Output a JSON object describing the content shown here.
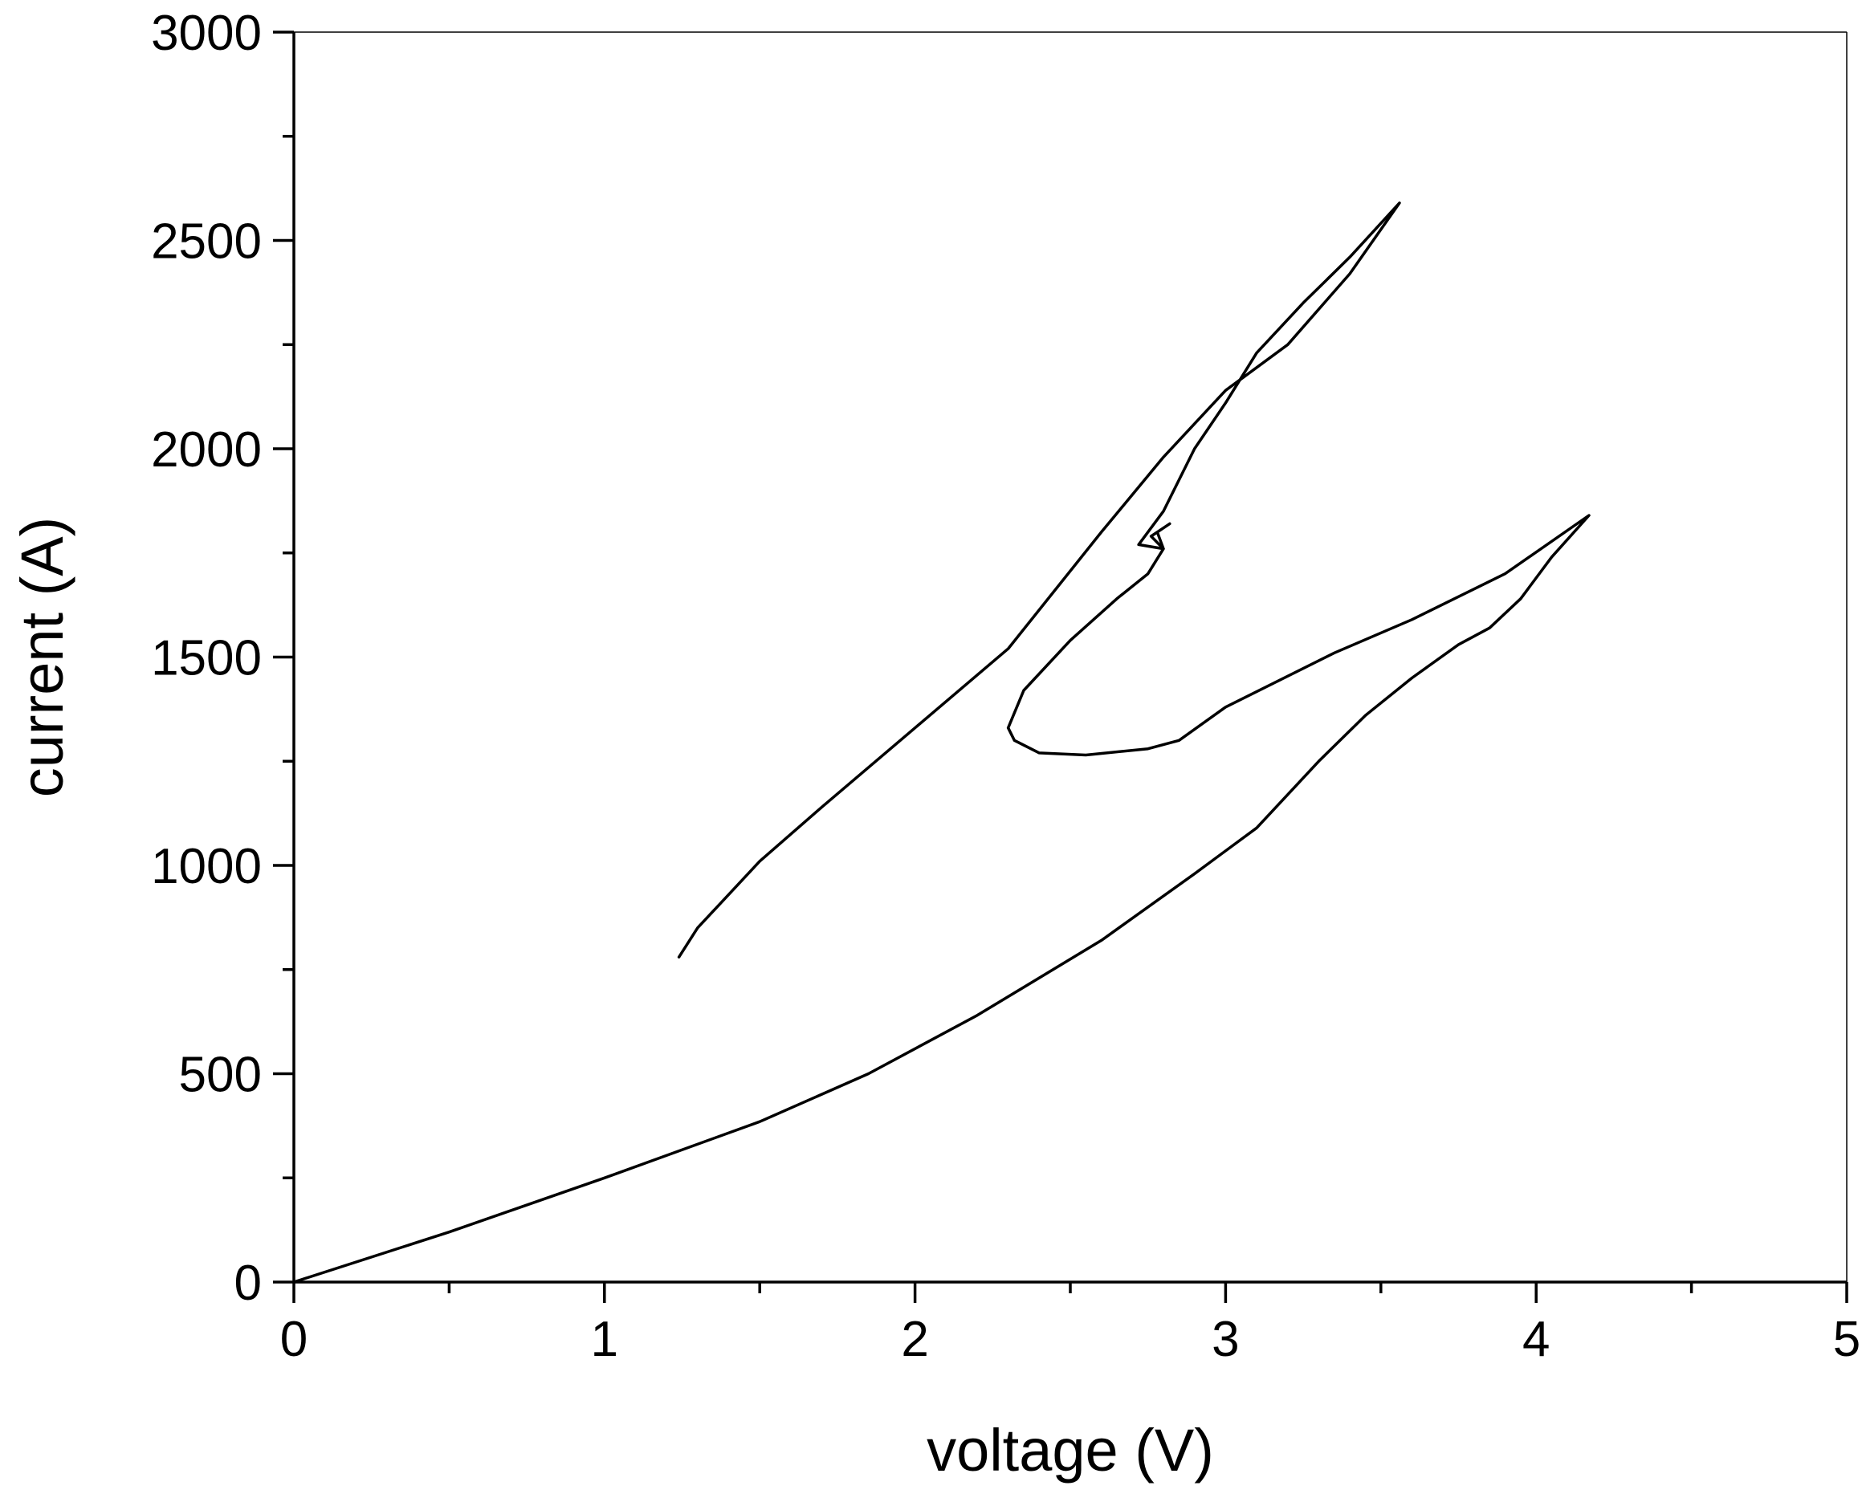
{
  "chart_data": {
    "type": "line",
    "title": "",
    "xlabel": "voltage (V)",
    "ylabel": "current (A)",
    "xlim": [
      0,
      5
    ],
    "ylim": [
      0,
      3000
    ],
    "x_ticks": [
      0,
      1,
      2,
      3,
      4,
      5
    ],
    "x_tick_labels": [
      "0",
      "1",
      "2",
      "3",
      "4",
      "5"
    ],
    "y_ticks": [
      0,
      500,
      1000,
      1500,
      2000,
      2500,
      3000
    ],
    "y_tick_labels": [
      "0",
      "500",
      "1000",
      "1500",
      "2000",
      "2500",
      "3000"
    ],
    "x_minor_step": 0.5,
    "y_minor_step": 250,
    "grid": false,
    "legend": "none",
    "line_color": "#000000",
    "series": [
      {
        "x": [
          0,
          0.5,
          1.0,
          1.5,
          1.85,
          2.2,
          2.6,
          2.9,
          3.1,
          3.3,
          3.45,
          3.6,
          3.75,
          3.85,
          3.95,
          4.05,
          4.17,
          3.9,
          3.6,
          3.35,
          3.0,
          2.85,
          2.75,
          2.55,
          2.4,
          2.32,
          2.3,
          2.35,
          2.5,
          2.65,
          2.75,
          2.8,
          2.78,
          2.82,
          2.76,
          2.8,
          2.72,
          2.8,
          2.9,
          3.0,
          3.1,
          3.25,
          3.4,
          3.56,
          3.4,
          3.2,
          3.0,
          2.8,
          2.6,
          2.3,
          2.0,
          1.7,
          1.5,
          1.3,
          1.24
        ],
        "y": [
          0,
          120,
          250,
          385,
          500,
          640,
          820,
          980,
          1090,
          1250,
          1360,
          1450,
          1530,
          1570,
          1640,
          1740,
          1840,
          1700,
          1590,
          1510,
          1380,
          1300,
          1280,
          1265,
          1270,
          1300,
          1330,
          1420,
          1540,
          1640,
          1700,
          1760,
          1800,
          1820,
          1790,
          1760,
          1770,
          1850,
          2000,
          2110,
          2230,
          2350,
          2460,
          2590,
          2420,
          2250,
          2140,
          1980,
          1800,
          1520,
          1330,
          1140,
          1010,
          850,
          780
        ]
      }
    ]
  }
}
